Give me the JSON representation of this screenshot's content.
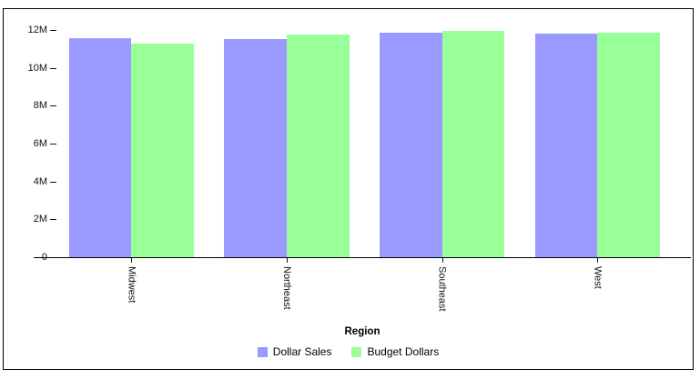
{
  "figure": {
    "background": "#ffffff",
    "border_color": "#000000",
    "text_color": "#111111"
  },
  "chart_data": {
    "type": "bar",
    "title": "",
    "xlabel": "Region",
    "ylabel": "",
    "categories": [
      "Midwest",
      "Northeast",
      "Southeast",
      "West"
    ],
    "series": [
      {
        "name": "Dollar Sales",
        "color": "#9999ff",
        "values": [
          11550000,
          11500000,
          11850000,
          11800000
        ]
      },
      {
        "name": "Budget Dollars",
        "color": "#99ff99",
        "values": [
          11300000,
          11750000,
          11950000,
          11850000
        ]
      }
    ],
    "ylim": [
      0,
      12000000
    ],
    "ytick_values": [
      0,
      2000000,
      4000000,
      6000000,
      8000000,
      10000000,
      12000000
    ],
    "ytick_labels": [
      "0",
      "2M",
      "4M",
      "6M",
      "8M",
      "10M",
      "12M"
    ],
    "grid": false,
    "legend_position": "bottom",
    "x_tick_label_rotation": 90
  }
}
